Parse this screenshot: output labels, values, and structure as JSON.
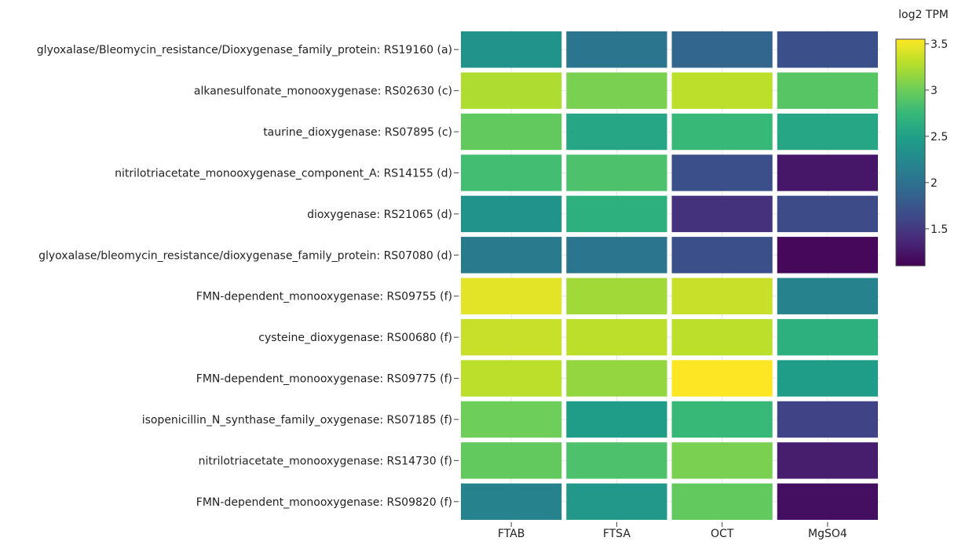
{
  "chart_data": {
    "type": "heatmap",
    "title": "",
    "xlabel": "",
    "ylabel": "",
    "categories": [
      "FTAB",
      "FTSA",
      "OCT",
      "MgSO4"
    ],
    "rows": [
      "glyoxalase/Bleomycin_resistance/Dioxygenase_family_protein: RS19160 (a)",
      "alkanesulfonate_monooxygenase: RS02630 (c)",
      "taurine_dioxygenase: RS07895 (c)",
      "nitrilotriacetate_monooxygenase_component_A: RS14155 (d)",
      "dioxygenase: RS21065 (d)",
      "glyoxalase/bleomycin_resistance/dioxygenase_family_protein: RS07080 (d)",
      "FMN-dependent_monooxygenase: RS09755 (f)",
      "cysteine_dioxygenase: RS00680 (f)",
      "FMN-dependent_monooxygenase: RS09775 (f)",
      "isopenicillin_N_synthase_family_oxygenase: RS07185 (f)",
      "nitrilotriacetate_monooxygenase: RS14730 (f)",
      "FMN-dependent_monooxygenase: RS09820 (f)"
    ],
    "values": [
      [
        2.35,
        2.05,
        1.9,
        1.7
      ],
      [
        3.25,
        3.05,
        3.3,
        2.9
      ],
      [
        2.95,
        2.55,
        2.75,
        2.55
      ],
      [
        2.8,
        2.85,
        1.7,
        1.25
      ],
      [
        2.35,
        2.65,
        1.45,
        1.65
      ],
      [
        2.1,
        2.05,
        1.7,
        1.15
      ],
      [
        3.45,
        3.2,
        3.35,
        2.2
      ],
      [
        3.35,
        3.3,
        3.3,
        2.65
      ],
      [
        3.3,
        3.15,
        3.55,
        2.45
      ],
      [
        3.0,
        2.45,
        2.75,
        1.6
      ],
      [
        2.95,
        2.85,
        3.05,
        1.3
      ],
      [
        2.2,
        2.4,
        2.95,
        1.2
      ]
    ],
    "colorbar": {
      "title": "log2 TPM",
      "min": 1.1,
      "max": 3.55,
      "ticks": [
        1.5,
        2,
        2.5,
        3,
        3.5
      ],
      "tick_labels": [
        "1.5",
        "2",
        "2.5",
        "3",
        "3.5"
      ]
    },
    "colorscale": "viridis",
    "legend_position": "right"
  }
}
